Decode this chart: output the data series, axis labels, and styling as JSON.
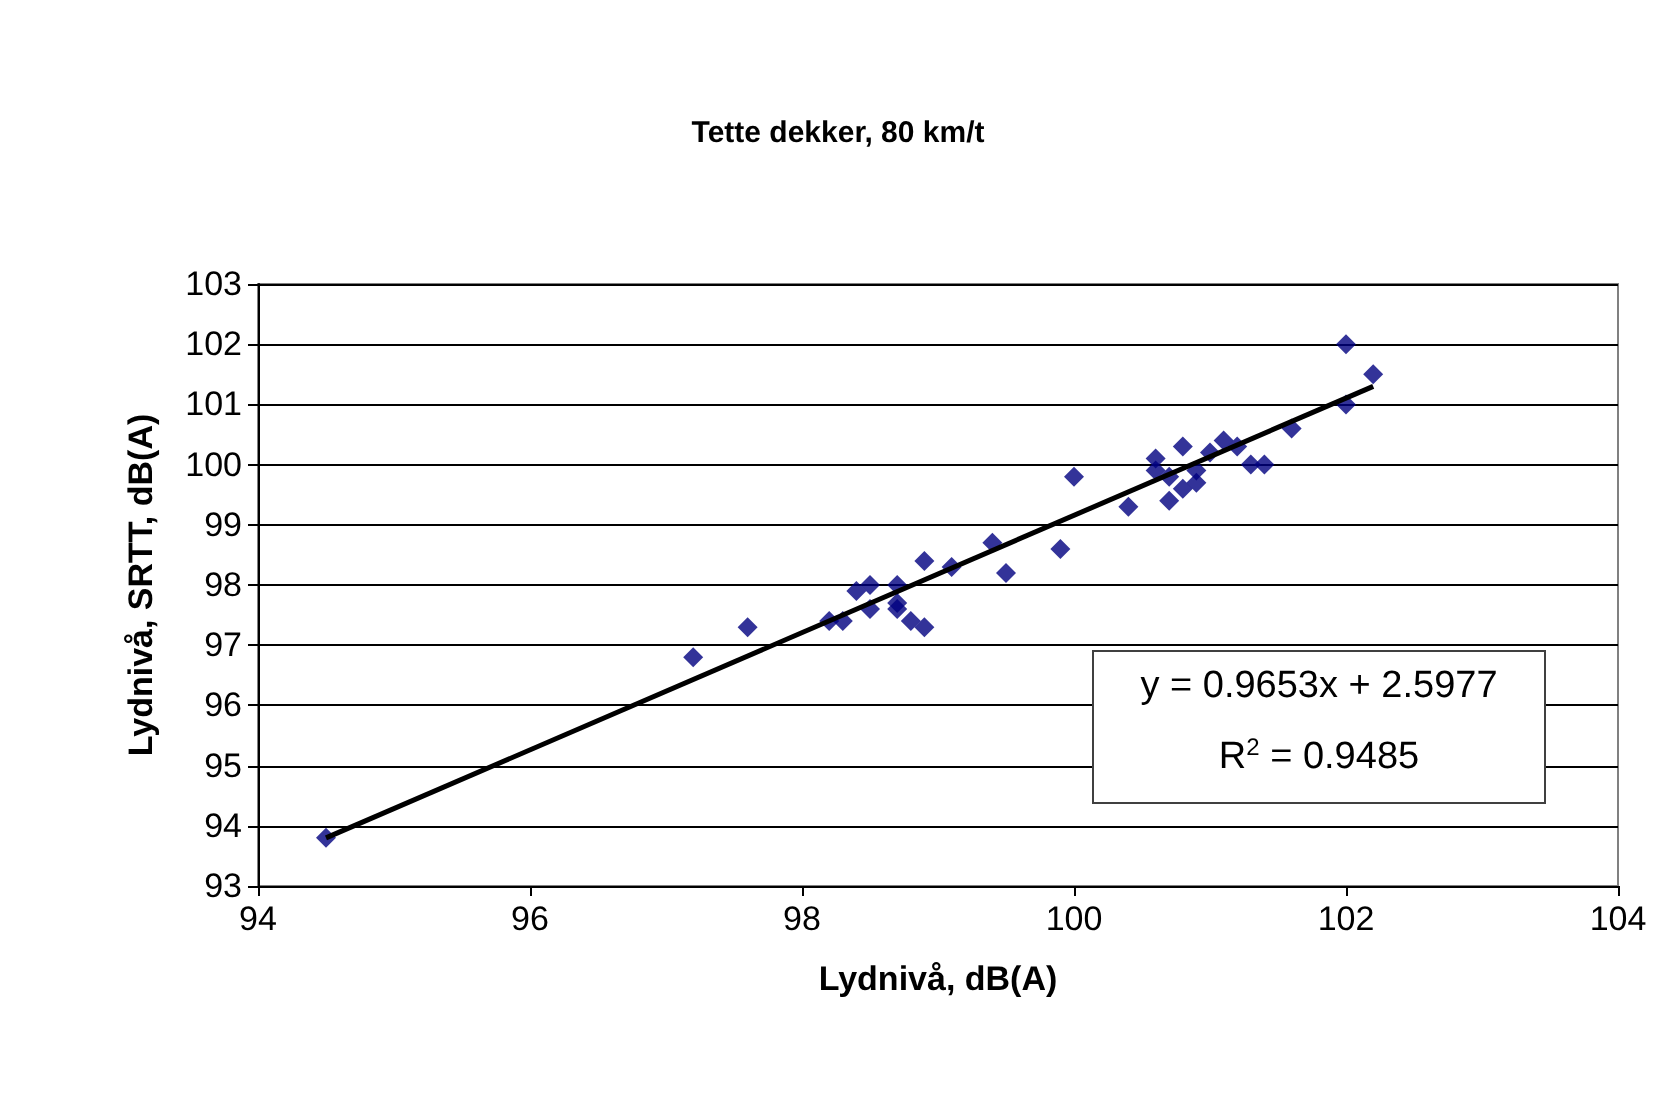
{
  "chart_data": {
    "type": "scatter",
    "title": "Tette dekker, 80 km/t",
    "xlabel": "Lydnivå, dB(A)",
    "ylabel": "Lydnivå, SRTT, dB(A)",
    "annotations": [
      "y = 0.9653x + 2.5977",
      "R$^{2}$ = 0.9485"
    ],
    "series": [
      {
        "color": "#000080",
        "marker": "diamond",
        "x": [
          94.5,
          97.2,
          97.6,
          98.2,
          98.3,
          98.4,
          98.5,
          98.5,
          98.7,
          98.7,
          98.7,
          98.8,
          98.9,
          98.9,
          99.1,
          99.4,
          99.5,
          99.9,
          100.0,
          100.4,
          100.6,
          100.6,
          100.7,
          100.7,
          100.8,
          100.8,
          100.9,
          100.9,
          101.0,
          101.1,
          101.2,
          101.3,
          101.4,
          101.6,
          102.0,
          102.0,
          102.2
        ],
        "values": [
          93.8,
          96.8,
          97.3,
          97.4,
          97.4,
          97.9,
          98.0,
          97.6,
          98.0,
          97.7,
          97.6,
          97.4,
          97.3,
          98.4,
          98.3,
          98.7,
          98.2,
          98.6,
          99.8,
          99.3,
          100.1,
          99.9,
          99.4,
          99.8,
          100.3,
          99.6,
          99.7,
          99.9,
          100.2,
          100.4,
          100.3,
          100.0,
          100.0,
          100.6,
          102.0,
          101.0,
          101.5
        ]
      },
      {
        "type": "line",
        "color": "#000000",
        "marker": "none",
        "line_style": "solid",
        "x": [
          94.5,
          102.2
        ],
        "values": [
          93.8,
          101.3
        ]
      }
    ],
    "xlim": [
      94,
      104
    ],
    "xticks": [
      94,
      96,
      98,
      100,
      102,
      104
    ],
    "ylim": [
      93,
      103
    ],
    "yticks": [
      93,
      94,
      95,
      96,
      97,
      98,
      99,
      100,
      101,
      102,
      103
    ],
    "grid": "y"
  }
}
